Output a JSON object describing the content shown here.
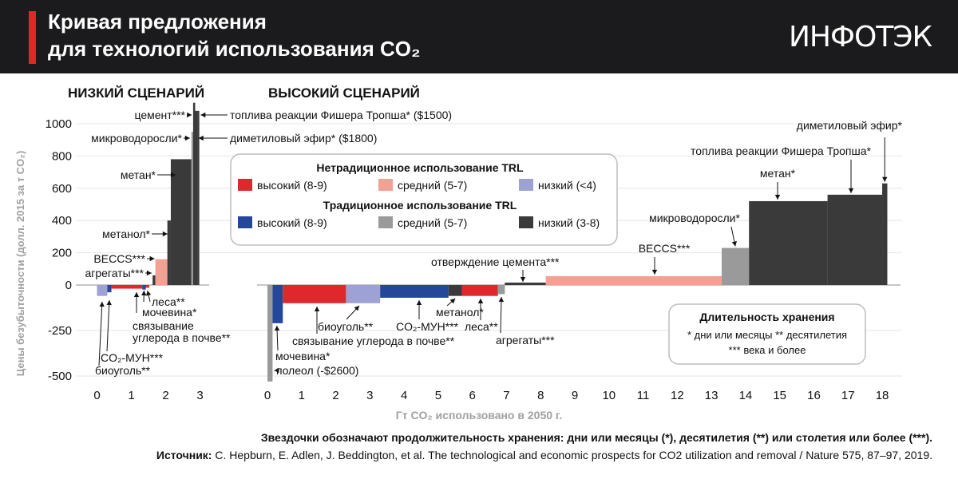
{
  "header": {
    "title_line1": "Кривая предложения",
    "title_line2": "для технологий использования CO₂",
    "logo": "ИНФОТЭК"
  },
  "footer": {
    "note": "Звездочки обозначают продолжительность хранения: дни или месяцы (*), десятилетия (**) или столетия или более (***).",
    "source_label": "Источник:",
    "source_text": "C. Hepburn, E. Adlen, J. Beddington, et al. The technological and economic prospects for CO2 utilization and removal / Nature 575, 87–97, 2019."
  },
  "legend": {
    "heading_nontrad": "Нетрадиционное использование TRL",
    "heading_trad": "Традиционное использование TRL",
    "items": [
      {
        "label": "высокий (8-9)",
        "color": "#e0272c"
      },
      {
        "label": "средний (5-7)",
        "color": "#f2a193"
      },
      {
        "label": "низкий (<4)",
        "color": "#9ea1d3"
      },
      {
        "label": "высокий (8-9)",
        "color": "#24479a"
      },
      {
        "label": "средний (5-7)",
        "color": "#9a9a9a"
      },
      {
        "label": "низкий (3-8)",
        "color": "#3a3a3a"
      }
    ]
  },
  "storage_box": {
    "title": "Длительность хранения",
    "line1": "* дни или месяцы   ** десятилетия",
    "line2": "*** века и более"
  },
  "chart_data": [
    {
      "type": "bar",
      "title": "НИЗКИЙ СЦЕНАРИЙ",
      "xlabel": "Гт CO₂ использовано в 2050 г.",
      "ylabel": "Цены безубыточности (долл. 2015 за т CO₂)",
      "xlim": [
        -0.5,
        3.2
      ],
      "ylim": [
        -530,
        1100
      ],
      "yticks": [
        "1000",
        "800",
        "600",
        "400",
        "200",
        "0",
        "-250",
        "-500"
      ],
      "ytick_values": [
        1000,
        800,
        600,
        400,
        200,
        0,
        -250,
        -500
      ],
      "y_scale": "piecewise: compressed below 0",
      "xticks": [
        0,
        1,
        2,
        3
      ],
      "bars": [
        {
          "label": "биоуголь**",
          "x0": 0.0,
          "x1": 0.3,
          "value": -60,
          "color": "#9ea1d3"
        },
        {
          "label": "CO₂-МУН***",
          "x0": 0.3,
          "x1": 0.42,
          "value": -40,
          "color": "#24479a"
        },
        {
          "label": "связывание углерода в почве**",
          "x0": 0.42,
          "x1": 1.32,
          "value": -20,
          "color": "#e0272c"
        },
        {
          "label": "мочевина*",
          "x0": 1.32,
          "x1": 1.42,
          "value": -25,
          "color": "#24479a"
        },
        {
          "label": "леса**",
          "x0": 1.42,
          "x1": 1.52,
          "value": -15,
          "color": "#e0272c"
        },
        {
          "label": "агрегаты***",
          "x0": 1.62,
          "x1": 1.7,
          "value": 60,
          "color": "#3a3a3a"
        },
        {
          "label": "BECCS***",
          "x0": 1.7,
          "x1": 2.05,
          "value": 160,
          "color": "#f2a193"
        },
        {
          "label": "метанол*",
          "x0": 2.05,
          "x1": 2.15,
          "value": 400,
          "color": "#3a3a3a"
        },
        {
          "label": "метан*",
          "x0": 2.15,
          "x1": 2.75,
          "value": 780,
          "color": "#3a3a3a"
        },
        {
          "label": "микроводоросли*",
          "x0": 2.75,
          "x1": 2.8,
          "value": 950,
          "color": "#9a9a9a"
        },
        {
          "label": "цемент***",
          "x0": 2.8,
          "x1": 2.86,
          "value": 1130,
          "color": "#3a3a3a"
        },
        {
          "label": "диметиловый эфир* ($1800)",
          "x0": 2.86,
          "x1": 2.92,
          "value": 1080,
          "color": "#3a3a3a"
        },
        {
          "label": "топлива реакции Фишера Тропша* ($1500)",
          "x0": 2.92,
          "x1": 2.98,
          "value": 1080,
          "color": "#3a3a3a"
        }
      ],
      "labels_above": [
        {
          "text": "цемент***",
          "bar": 10,
          "y": 1065
        },
        {
          "text": "топлива реакции Фишера Тропша* ($1500)",
          "bar": 12,
          "y": 1065,
          "side": "right"
        },
        {
          "text": "микроводоросли*",
          "bar": 9,
          "y": 905
        },
        {
          "text": "диметиловый эфир* ($1800)",
          "bar": 11,
          "y": 905,
          "side": "right"
        },
        {
          "text": "метан*",
          "bar": 8,
          "y": 690
        },
        {
          "text": "метанол*",
          "bar": 7,
          "y": 310
        },
        {
          "text": "BECCS***",
          "bar": 6,
          "y": 160
        },
        {
          "text": "агрегаты***",
          "bar": 5,
          "y": 70
        }
      ],
      "labels_below": [
        {
          "text": "леса**",
          "bar": 4
        },
        {
          "text": "мочевина*",
          "bar": 3
        },
        {
          "text": "связывание",
          "bar": 2
        },
        {
          "text": "углерода в почве**",
          "bar": 2
        },
        {
          "text": "CO₂-МУН***",
          "bar": 1
        },
        {
          "text": "биоуголь**",
          "bar": 0
        }
      ]
    },
    {
      "type": "bar",
      "title": "ВЫСОКИЙ СЦЕНАРИЙ",
      "xlabel": "Гт CO₂ использовано в 2050 г.",
      "xlim": [
        -0.5,
        18.6
      ],
      "xticks": [
        0,
        1,
        2,
        3,
        4,
        5,
        6,
        7,
        8,
        9,
        10,
        11,
        12,
        13,
        14,
        15,
        16,
        17,
        18
      ],
      "bars": [
        {
          "label": "полеол (-$2600)",
          "x0": 0.0,
          "x1": 0.15,
          "value": -530,
          "color": "#9a9a9a"
        },
        {
          "label": "мочевина*",
          "x0": 0.15,
          "x1": 0.45,
          "value": -210,
          "color": "#24479a"
        },
        {
          "label": "связывание углерода в почве**",
          "x0": 0.45,
          "x1": 2.3,
          "value": -100,
          "color": "#e0272c"
        },
        {
          "label": "биоуголь**",
          "x0": 2.3,
          "x1": 3.3,
          "value": -100,
          "color": "#9ea1d3"
        },
        {
          "label": "CO₂-МУН***",
          "x0": 3.3,
          "x1": 5.3,
          "value": -70,
          "color": "#24479a"
        },
        {
          "label": "метанол*",
          "x0": 5.3,
          "x1": 5.7,
          "value": -60,
          "color": "#3a3a3a"
        },
        {
          "label": "леса**",
          "x0": 5.7,
          "x1": 6.75,
          "value": -60,
          "color": "#e0272c"
        },
        {
          "label": "агрегаты***",
          "x0": 6.75,
          "x1": 6.95,
          "value": -50,
          "color": "#9a9a9a"
        },
        {
          "label": "отверждение цемента***",
          "x0": 6.95,
          "x1": 8.15,
          "value": 15,
          "color": "#3a3a3a"
        },
        {
          "label": "BECCS***",
          "x0": 8.15,
          "x1": 13.3,
          "value": 55,
          "color": "#f2a193"
        },
        {
          "label": "микроводоросли*",
          "x0": 13.3,
          "x1": 14.1,
          "value": 230,
          "color": "#9a9a9a"
        },
        {
          "label": "метан*",
          "x0": 14.1,
          "x1": 16.4,
          "value": 520,
          "color": "#3a3a3a"
        },
        {
          "label": "топлива реакции Фишера Тропша*",
          "x0": 16.4,
          "x1": 18.0,
          "value": 560,
          "color": "#3a3a3a"
        },
        {
          "label": "диметиловый эфир*",
          "x0": 18.0,
          "x1": 18.15,
          "value": 630,
          "color": "#3a3a3a"
        }
      ],
      "labels_above": [
        {
          "text": "диметиловый эфир*",
          "bar": 13,
          "y": 1000
        },
        {
          "text": "топлива реакции Фишера Тропша*",
          "bar": 12,
          "y": 820
        },
        {
          "text": "метан*",
          "bar": 11,
          "y": 700
        },
        {
          "text": "микроводоросли*",
          "bar": 10,
          "y": 410
        },
        {
          "text": "BECCS***",
          "bar": 9,
          "y": 230
        },
        {
          "text": "отверждение цемента***",
          "bar": 8,
          "y": 130
        }
      ],
      "labels_below": [
        {
          "text": "мочевина*",
          "bar": 1
        },
        {
          "text": "полеол (-$2600)",
          "bar": 0
        },
        {
          "text": "связывание углерода в почве**",
          "bar": 2
        },
        {
          "text": "биоуголь**",
          "bar": 3
        },
        {
          "text": "CO₂-МУН***",
          "bar": 4
        },
        {
          "text": "метанол*",
          "bar": 5
        },
        {
          "text": "леса**",
          "bar": 6
        },
        {
          "text": "агрегаты***",
          "bar": 7
        }
      ]
    }
  ]
}
